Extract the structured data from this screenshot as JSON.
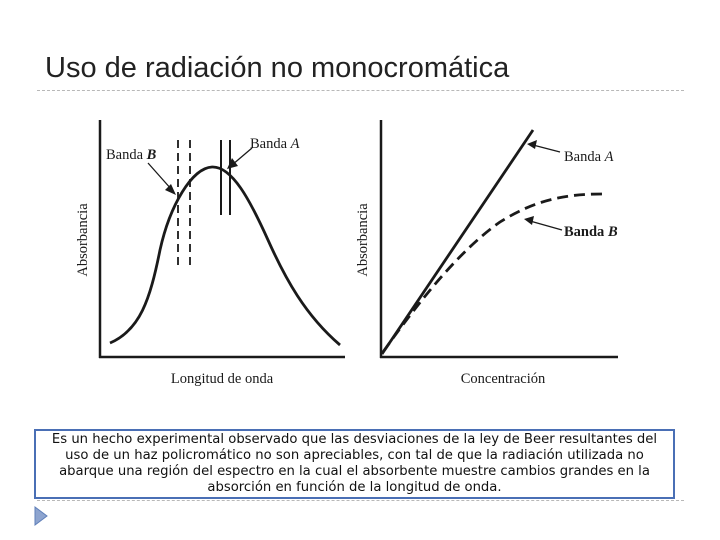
{
  "slide": {
    "title": "Uso de radiación no monocromática",
    "caption": "Es un hecho experimental observado que las desviaciones de la ley de Beer resultantes del uso de un haz policromático no son apreciables, con tal de que la radiación utilizada no abarque una región del espectro en la cual el absorbente muestre cambios grandes en la absorción en función de la longitud de onda."
  },
  "left_plot": {
    "ylabel": "Absorbancia",
    "xlabel": "Longitud de onda",
    "band_b_label": "Banda ",
    "band_b_letter": "B",
    "band_a_label": "Banda ",
    "band_a_letter": "A"
  },
  "right_plot": {
    "ylabel": "Absorbancia",
    "xlabel": "Concentración",
    "band_a_label": "Banda ",
    "band_a_letter": "A",
    "band_b_label": "Banda ",
    "band_b_letter": "B"
  },
  "colors": {
    "accent": "#4a6fb5",
    "ink": "#1a1a1a"
  },
  "icons": {
    "footer": "triangle-arrow-icon"
  }
}
